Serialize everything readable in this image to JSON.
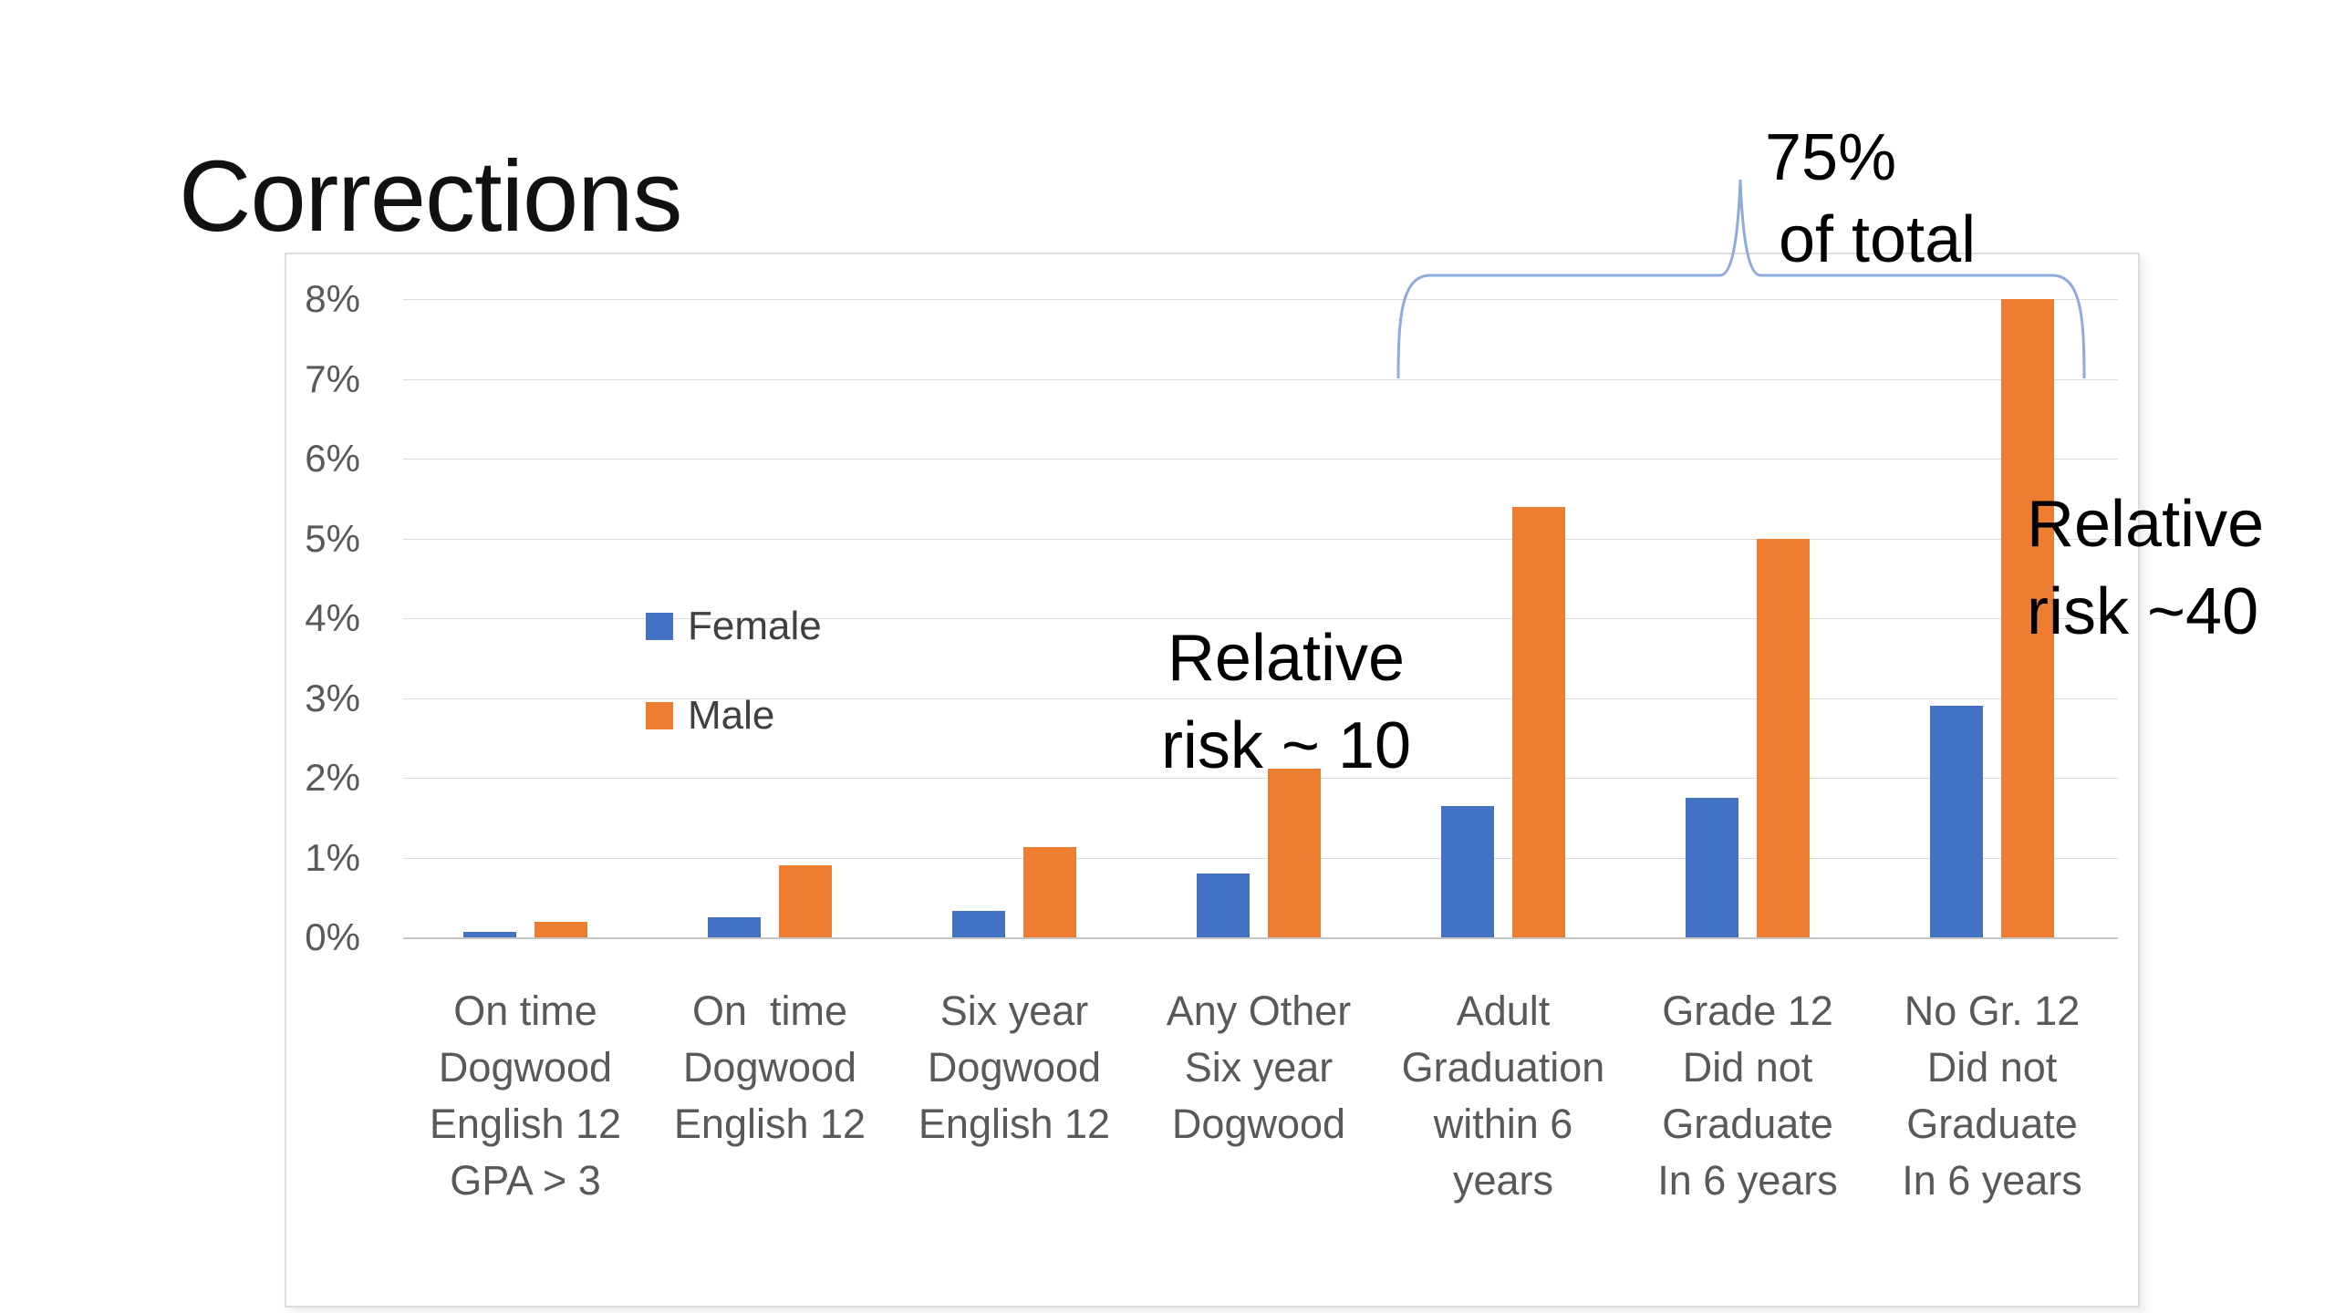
{
  "title": "Corrections",
  "legend": {
    "items": [
      {
        "label": "Female",
        "color": "#4472C4"
      },
      {
        "label": "Male",
        "color": "#ED7D31"
      }
    ]
  },
  "annotations": {
    "brace_label": {
      "line1": "75%",
      "line2": "of total"
    },
    "risk10": {
      "line1": "Relative",
      "line2": "risk ~ 10"
    },
    "risk40": {
      "line1": "Relative",
      "line2": "risk ~40"
    }
  },
  "colors": {
    "female_bar": "#4472C4",
    "male_bar": "#ED7D31",
    "gridline": "#dcdcdc",
    "axis_line": "#c6c6c6",
    "axis_text": "#595959",
    "brace": "#8FAADC"
  },
  "chart_data": {
    "type": "bar",
    "title": "Corrections",
    "categories": [
      [
        "On time",
        "Dogwood",
        "English 12",
        "GPA > 3"
      ],
      [
        "On  time",
        "Dogwood",
        "English 12"
      ],
      [
        "Six year",
        "Dogwood",
        "English 12"
      ],
      [
        "Any Other",
        "Six year",
        "Dogwood"
      ],
      [
        "Adult",
        "Graduation",
        "within 6",
        "years"
      ],
      [
        "Grade 12",
        "Did not",
        "Graduate",
        "In 6 years"
      ],
      [
        "No Gr. 12",
        "Did not",
        "Graduate",
        "In 6 years"
      ]
    ],
    "series": [
      {
        "name": "Female",
        "color": "#4472C4",
        "values": [
          0.07,
          0.25,
          0.33,
          0.8,
          1.65,
          1.75,
          2.9
        ]
      },
      {
        "name": "Male",
        "color": "#ED7D31",
        "values": [
          0.2,
          0.9,
          1.13,
          2.12,
          5.4,
          5.0,
          8.0
        ]
      }
    ],
    "y_ticks": [
      "0%",
      "1%",
      "2%",
      "3%",
      "4%",
      "5%",
      "6%",
      "7%",
      "8%"
    ],
    "ylim": [
      0,
      8
    ],
    "xlabel": "",
    "ylabel": "",
    "grid": true,
    "legend_position": "inside-plot-left",
    "annotations": [
      "75% of total (brace over last 3 categories)",
      "Relative risk ~ 10",
      "Relative risk ~40"
    ]
  }
}
